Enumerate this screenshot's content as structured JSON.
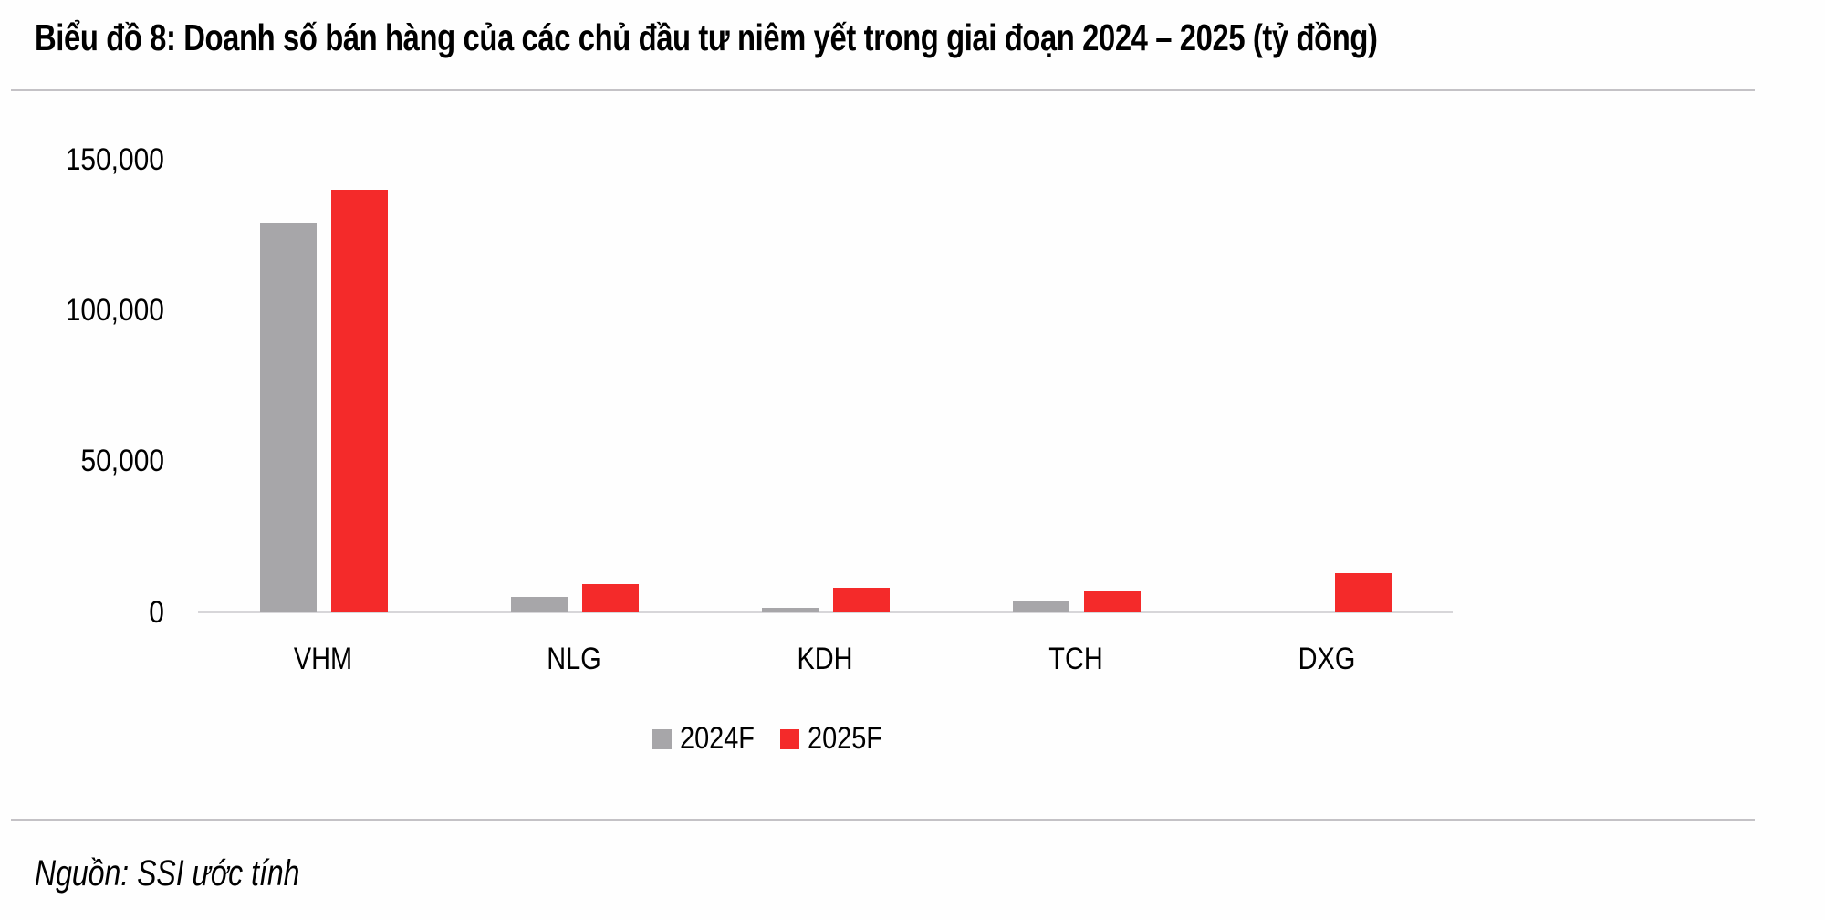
{
  "title": "Biểu đồ 8: Doanh số bán hàng của các chủ đầu tư niêm yết trong giai đoạn 2024 – 2025 (tỷ đồng)",
  "source": "Nguồn: SSI ước tính",
  "colors": {
    "series_2024F": "#a7a6a9",
    "series_2025F": "#f42a2a",
    "axis": "#d7d6d9",
    "rule": "#c4c2c6"
  },
  "y_ticks": [
    "150,000",
    "100,000",
    "50,000",
    "0"
  ],
  "legend": [
    {
      "label": "2024F",
      "color": "#a7a6a9"
    },
    {
      "label": "2025F",
      "color": "#f42a2a"
    }
  ],
  "chart_data": {
    "type": "bar",
    "title": "Biểu đồ 8: Doanh số bán hàng của các chủ đầu tư niêm yết trong giai đoạn 2024 – 2025 (tỷ đồng)",
    "categories": [
      "VHM",
      "NLG",
      "KDH",
      "TCH",
      "DXG"
    ],
    "series": [
      {
        "name": "2024F",
        "color": "#a7a6a9",
        "values": [
          129000,
          4900,
          1200,
          3300,
          0
        ]
      },
      {
        "name": "2025F",
        "color": "#f42a2a",
        "values": [
          140000,
          9000,
          8000,
          6700,
          12700
        ]
      }
    ],
    "xlabel": "",
    "ylabel": "",
    "ylim": [
      0,
      150000
    ],
    "y_ticks": [
      0,
      50000,
      100000,
      150000
    ],
    "grid": false,
    "legend_position": "bottom",
    "source": "Nguồn: SSI ước tính"
  }
}
